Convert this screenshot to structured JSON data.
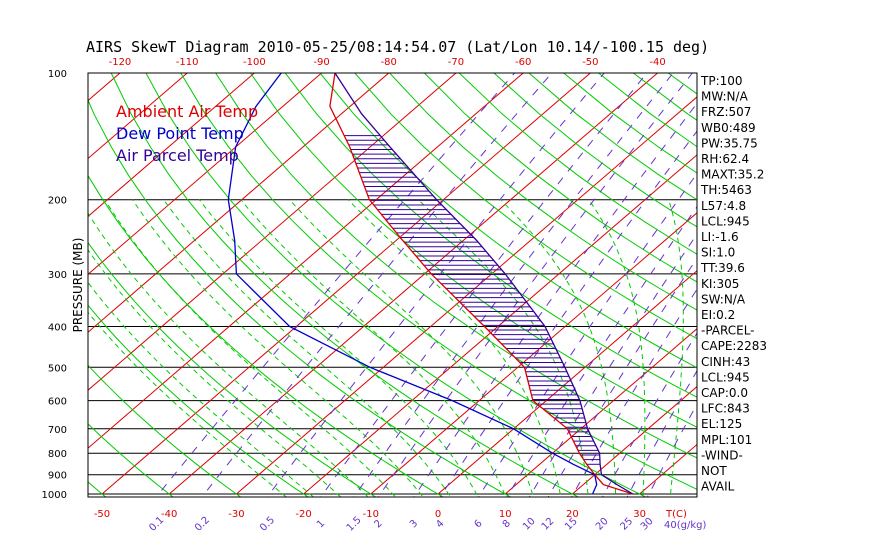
{
  "title": "AIRS SkewT Diagram 2010-05-25/08:14:54.07 (Lat/Lon 10.14/-100.15 deg)",
  "ylabel": "PRESSURE (MB)",
  "legend": [
    {
      "label": "Ambient Air Temp",
      "color": "#dd0000"
    },
    {
      "label": "Dew Point Temp",
      "color": "#0000cc"
    },
    {
      "label": "Air Parcel Temp",
      "color": "#330099"
    }
  ],
  "colors": {
    "isotherm": "#dd0000",
    "dry_adiabat": "#00cc00",
    "moist_adiabat": "#00cc00",
    "mixing_ratio": "#6633cc",
    "isobar": "#000000",
    "parcel_hatch": "#330099"
  },
  "chart_data": {
    "type": "line",
    "skew_t": true,
    "y_scale": "log",
    "ylim": [
      1000,
      100
    ],
    "xlim_bottom": [
      -50,
      40
    ],
    "top_temp_ticks": [
      -120,
      -110,
      -100,
      -90,
      -80,
      -70,
      -60,
      -50,
      -40
    ],
    "bottom_temp_ticks": [
      -50,
      -40,
      -30,
      -20,
      -10,
      0,
      10,
      20,
      30
    ],
    "bottom_axis_unit": "T(C)",
    "pressure_ticks": [
      100,
      200,
      300,
      400,
      500,
      600,
      700,
      800,
      900,
      1000
    ],
    "mixing_ratio_ticks": [
      "0.1",
      "0.2",
      "0.5",
      "1",
      "1.5",
      "2",
      "3",
      "4",
      "6",
      "8",
      "10",
      "12",
      "15",
      "20",
      "25",
      "30"
    ],
    "mixing_ratio_unit": "40(g/kg)",
    "series": [
      {
        "name": "Ambient Air Temp",
        "color": "#dd0000",
        "points": [
          [
            1000,
            29
          ],
          [
            950,
            23
          ],
          [
            900,
            20
          ],
          [
            850,
            17
          ],
          [
            800,
            14
          ],
          [
            700,
            8
          ],
          [
            600,
            -2
          ],
          [
            500,
            -9
          ],
          [
            400,
            -22
          ],
          [
            300,
            -39
          ],
          [
            250,
            -49
          ],
          [
            200,
            -61
          ],
          [
            150,
            -73
          ],
          [
            120,
            -83
          ],
          [
            100,
            -88
          ]
        ]
      },
      {
        "name": "Dew Point Temp",
        "color": "#0000cc",
        "points": [
          [
            1000,
            23
          ],
          [
            950,
            22
          ],
          [
            900,
            20
          ],
          [
            850,
            15
          ],
          [
            800,
            10
          ],
          [
            700,
            0
          ],
          [
            600,
            -14
          ],
          [
            500,
            -32
          ],
          [
            400,
            -51
          ],
          [
            300,
            -68
          ],
          [
            250,
            -74
          ],
          [
            200,
            -82
          ],
          [
            150,
            -90
          ],
          [
            120,
            -94
          ],
          [
            100,
            -96
          ]
        ]
      },
      {
        "name": "Air Parcel Temp",
        "color": "#330099",
        "points": [
          [
            1000,
            29
          ],
          [
            950,
            25
          ],
          [
            900,
            21
          ],
          [
            850,
            19
          ],
          [
            800,
            17
          ],
          [
            700,
            11
          ],
          [
            600,
            5
          ],
          [
            500,
            -3
          ],
          [
            400,
            -13
          ],
          [
            300,
            -28
          ],
          [
            250,
            -38
          ],
          [
            200,
            -51
          ],
          [
            150,
            -67
          ],
          [
            125,
            -77
          ],
          [
            100,
            -88
          ]
        ]
      }
    ]
  },
  "stats": [
    "TP:100",
    "MW:N/A",
    "FRZ:507",
    "WB0:489",
    "PW:35.75",
    "RH:62.4",
    "MAXT:35.2",
    "TH:5463",
    "L57:4.8",
    "LCL:945",
    "LI:-1.6",
    "SI:1.0",
    "TT:39.6",
    "KI:305",
    "SW:N/A",
    "EI:0.2",
    "-PARCEL-",
    "CAPE:2283",
    "CINH:43",
    "LCL:945",
    "CAP:0.0",
    "LFC:843",
    "EL:125",
    "MPL:101",
    "-WIND-",
    "NOT",
    "AVAIL"
  ]
}
